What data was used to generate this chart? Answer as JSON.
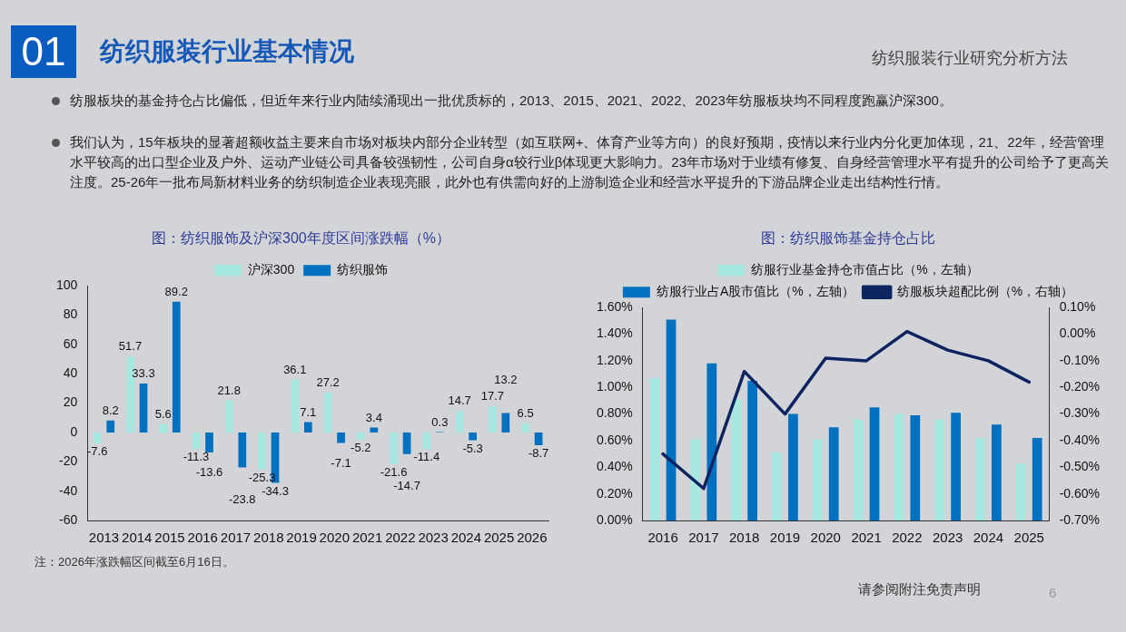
{
  "chart_data": [
    {
      "type": "other",
      "title": "纺织服装行业基本情况",
      "annotations": [
        "01",
        "纺织服装行业研究分析方法",
        "纺服板块的基金持仓占比偏低，但近年来行业内陆续涌现出一批优质标的，2013、2015、2021、2022、2023年纺服板块均不同程度跑赢沪深300。",
        "我们认为，15年板块的显著超额收益主要来自市场对板块内部分企业转型（如互联网+、体育产业等方向）的良好预期，疫情以来行业内分化更加体现，21、22年，经营管理水平较高的出口型企业及户外、运动产业链公司具备较强韧性，公司自身α较行业β体现更大影响力。23年市场对于业绩有修复、自身经营管理水平有提升的公司给予了更高关注度。25-26年一批布局新材料业务的纺织制造企业表现亮眼，此外也有供需向好的上游制造企业和经营水平提升的下游品牌企业走出结构性行情。",
        "注：2026年涨跌幅区间截至6月16日。",
        "请参阅附注免责声明",
        "6"
      ]
    },
    {
      "type": "bar",
      "title": "图：纺织服饰及沪深300年度区间涨跌幅（%）",
      "categories": [
        "2013",
        "2014",
        "2015",
        "2016",
        "2017",
        "2018",
        "2019",
        "2020",
        "2021",
        "2022",
        "2023",
        "2024",
        "2025",
        "2026"
      ],
      "series": [
        {
          "name": "沪深300",
          "color": "#a8e8e2",
          "values": [
            -7.6,
            51.7,
            5.6,
            -11.3,
            21.8,
            -25.3,
            36.1,
            27.2,
            -5.2,
            -21.6,
            -11.4,
            14.7,
            17.7,
            6.5
          ]
        },
        {
          "name": "纺织服饰",
          "color": "#0070c0",
          "values": [
            8.2,
            33.3,
            89.2,
            -13.6,
            -23.8,
            -34.3,
            7.1,
            -7.1,
            3.4,
            -14.7,
            0.3,
            -5.3,
            13.2,
            -8.7
          ]
        }
      ],
      "ylim": [
        -60,
        100
      ],
      "yticks": [
        -60,
        -40,
        -20,
        0,
        20,
        40,
        60,
        80,
        100
      ],
      "grid": false,
      "legend": "top",
      "data_labels": true
    },
    {
      "type": "bar",
      "title": "图：纺织服饰基金持仓占比",
      "categories": [
        "2016",
        "2017",
        "2018",
        "2019",
        "2020",
        "2021",
        "2022",
        "2023",
        "2024",
        "2025"
      ],
      "series": [
        {
          "name": "纺服行业基金持仓市值占比（%，左轴）",
          "color": "#a8e8e2",
          "values": [
            1.07,
            0.61,
            0.91,
            0.51,
            0.61,
            0.76,
            0.8,
            0.76,
            0.62,
            0.43
          ]
        },
        {
          "name": "纺服行业占A股市值比（%，左轴）",
          "color": "#0070c0",
          "values": [
            1.51,
            1.18,
            1.05,
            0.8,
            0.7,
            0.85,
            0.79,
            0.81,
            0.72,
            0.62
          ]
        },
        {
          "name": "纺服板块超配比例（%，右轴）",
          "type": "line",
          "axis": "y2",
          "color": "#0d2461",
          "values": [
            -0.45,
            -0.58,
            -0.14,
            -0.3,
            -0.09,
            -0.1,
            0.01,
            -0.06,
            -0.1,
            -0.18
          ]
        }
      ],
      "ylim": [
        0,
        1.6
      ],
      "yticks": [
        {
          "value": 0,
          "label": "0.00%"
        },
        {
          "value": 0.2,
          "label": "0.20%"
        },
        {
          "value": 0.4,
          "label": "0.40%"
        },
        {
          "value": 0.6,
          "label": "0.60%"
        },
        {
          "value": 0.8,
          "label": "0.80%"
        },
        {
          "value": 1.0,
          "label": "1.00%"
        },
        {
          "value": 1.2,
          "label": "1.20%"
        },
        {
          "value": 1.4,
          "label": "1.40%"
        },
        {
          "value": 1.6,
          "label": "1.60%"
        }
      ],
      "y2lim": [
        -0.7,
        0.1
      ],
      "y2ticks": [
        {
          "value": -0.7,
          "label": "-0.70%"
        },
        {
          "value": -0.6,
          "label": "-0.60%"
        },
        {
          "value": -0.5,
          "label": "-0.50%"
        },
        {
          "value": -0.4,
          "label": "-0.40%"
        },
        {
          "value": -0.3,
          "label": "-0.30%"
        },
        {
          "value": -0.2,
          "label": "-0.20%"
        },
        {
          "value": -0.1,
          "label": "-0.10%"
        },
        {
          "value": 0,
          "label": "0.00%"
        },
        {
          "value": 0.1,
          "label": "0.10%"
        }
      ],
      "grid": false,
      "legend": "top",
      "marker": "none",
      "line_style": "solid"
    }
  ]
}
